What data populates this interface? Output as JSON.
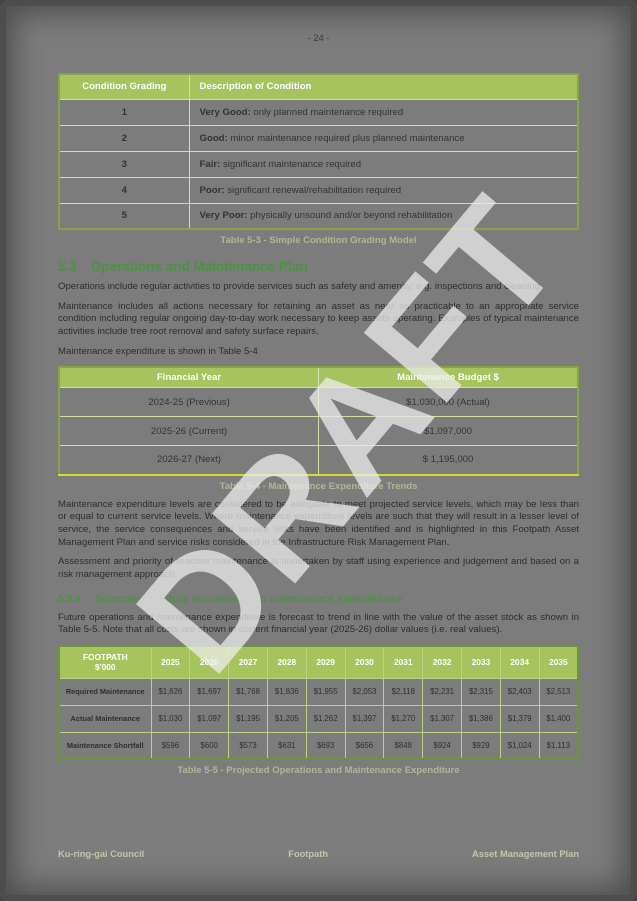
{
  "page": {
    "number_label": "- 24 -"
  },
  "colors": {
    "page_bg": "#7c7c7c",
    "table_header_green": "#a6c35e",
    "heading_green": "#4a9340",
    "caption_khaki": "#b3b697",
    "yellow_rule": "#d9d930",
    "watermark_white": "#ececec"
  },
  "condition_table": {
    "headers": [
      "Condition Grading",
      "Description of Condition"
    ],
    "rows": [
      {
        "grade": "1",
        "lead": "Very Good:",
        "rest": " only planned maintenance required"
      },
      {
        "grade": "2",
        "lead": "Good:",
        "rest": " minor maintenance required plus planned maintenance"
      },
      {
        "grade": "3",
        "lead": "Fair:",
        "rest": " significant maintenance required"
      },
      {
        "grade": "4",
        "lead": "Poor:",
        "rest": " significant renewal/rehabilitation required"
      },
      {
        "grade": "5",
        "lead": "Very Poor:",
        "rest": " physically unsound and/or beyond rehabilitation"
      }
    ],
    "caption": "Table 5-3 - Simple Condition Grading Model"
  },
  "section": {
    "number": "5.3",
    "title": "Operations and Maintenance Plan"
  },
  "paragraphs": {
    "p1": "Operations include regular activities to provide services such as safety and amenity, e.g. inspections and cleaning.",
    "p2": "Maintenance includes all actions necessary for retaining an asset as near as practicable to an appropriate service condition including regular ongoing day-to-day work necessary to keep assets operating. Examples of typical maintenance activities include tree root removal and safety surface repairs.",
    "p3": "Maintenance expenditure is shown in Table 5-4",
    "p4": "Maintenance expenditure levels are considered to be adequate to meet projected service levels, which may be less than or equal to current service levels.  Where maintenance expenditure levels are such that they will result in a lesser level of service, the service consequences and service risks have been identified and is highlighted in this Footpath Asset Management Plan and service risks considered in the Infrastructure Risk Management Plan.",
    "p5": "Assessment and priority of reactive maintenance is undertaken by staff using experience and judgement and based on a risk management approach.",
    "p6": "Future operations and maintenance expenditure is forecast to trend in line with the value of the asset stock as shown in Table 5-5. Note that all costs are shown in current financial year (2025-26) dollar values (i.e. real values)."
  },
  "budget_table": {
    "headers": [
      "Financial Year",
      "Maintenance Budget $"
    ],
    "rows": [
      [
        "2024-25 (Previous)",
        "$1,030,000 (Actual)"
      ],
      [
        "2025-26 (Current)",
        "$1,097,000"
      ],
      [
        "2026-27 (Next)",
        "$ 1,195,000"
      ]
    ],
    "caption": "Table 5-4 - Maintenance Expenditure Trends"
  },
  "subsection": {
    "number": "5.3.1",
    "title": "Summary of future operations and maintenance expenditures"
  },
  "projection_table": {
    "corner_line1": "FOOTPATH",
    "corner_line2": "$'000",
    "years": [
      "2025",
      "2026",
      "2027",
      "2028",
      "2029",
      "2030",
      "2031",
      "2032",
      "2033",
      "2034",
      "2035"
    ],
    "rows": [
      {
        "label": "Required Maintenance",
        "values": [
          "$1,626",
          "$1,697",
          "$1,768",
          "$1,836",
          "$1,955",
          "$2,053",
          "$2,118",
          "$2,231",
          "$2,315",
          "$2,403",
          "$2,513"
        ]
      },
      {
        "label": "Actual Maintenance",
        "values": [
          "$1,030",
          "$1,097",
          "$1,195",
          "$1,205",
          "$1,262",
          "$1,397",
          "$1,270",
          "$1,307",
          "$1,386",
          "$1,379",
          "$1,400"
        ]
      },
      {
        "label": "Maintenance Shortfall",
        "values": [
          "$596",
          "$600",
          "$573",
          "$631",
          "$693",
          "$656",
          "$848",
          "$924",
          "$929",
          "$1,024",
          "$1,113"
        ]
      }
    ],
    "caption": "Table 5-5 - Projected Operations and Maintenance Expenditure"
  },
  "footer": {
    "left": "Ku-ring-gai Council",
    "center": "Footpath",
    "right": "Asset Management Plan"
  },
  "watermark": "DRAFT"
}
